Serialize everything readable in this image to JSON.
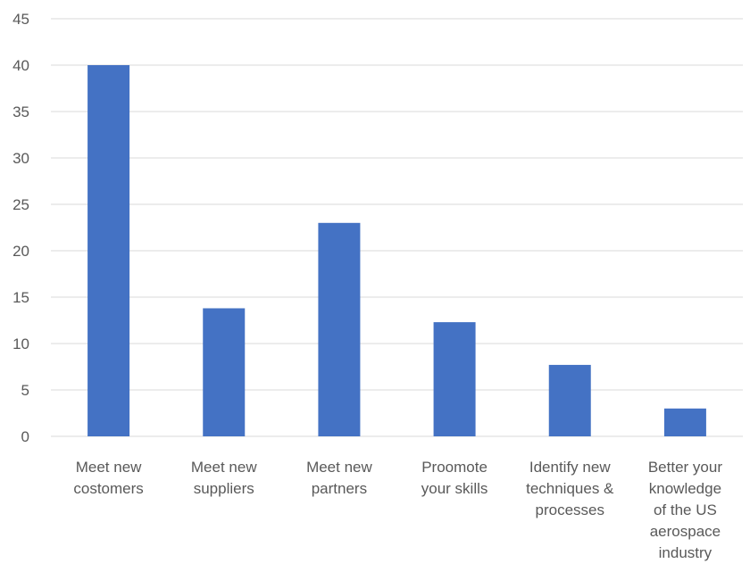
{
  "chart_data": {
    "type": "bar",
    "title": "",
    "xlabel": "",
    "ylabel": "",
    "ylim": [
      0,
      45
    ],
    "yticks": [
      0,
      5,
      10,
      15,
      20,
      25,
      30,
      35,
      40,
      45
    ],
    "grid": true,
    "legend": "none",
    "bar_color": "#4472C4",
    "grid_color": "#D9D9D9",
    "categories": [
      [
        "Meet new",
        "costomers"
      ],
      [
        "Meet new",
        "suppliers"
      ],
      [
        "Meet new",
        "partners"
      ],
      [
        "Proomote",
        "your skills"
      ],
      [
        "Identify new",
        "techniques &",
        "processes"
      ],
      [
        "Better your",
        "knowledge",
        "of the US",
        "aerospace",
        "industry"
      ]
    ],
    "values": [
      40,
      13.8,
      23,
      12.3,
      7.7,
      3
    ]
  }
}
